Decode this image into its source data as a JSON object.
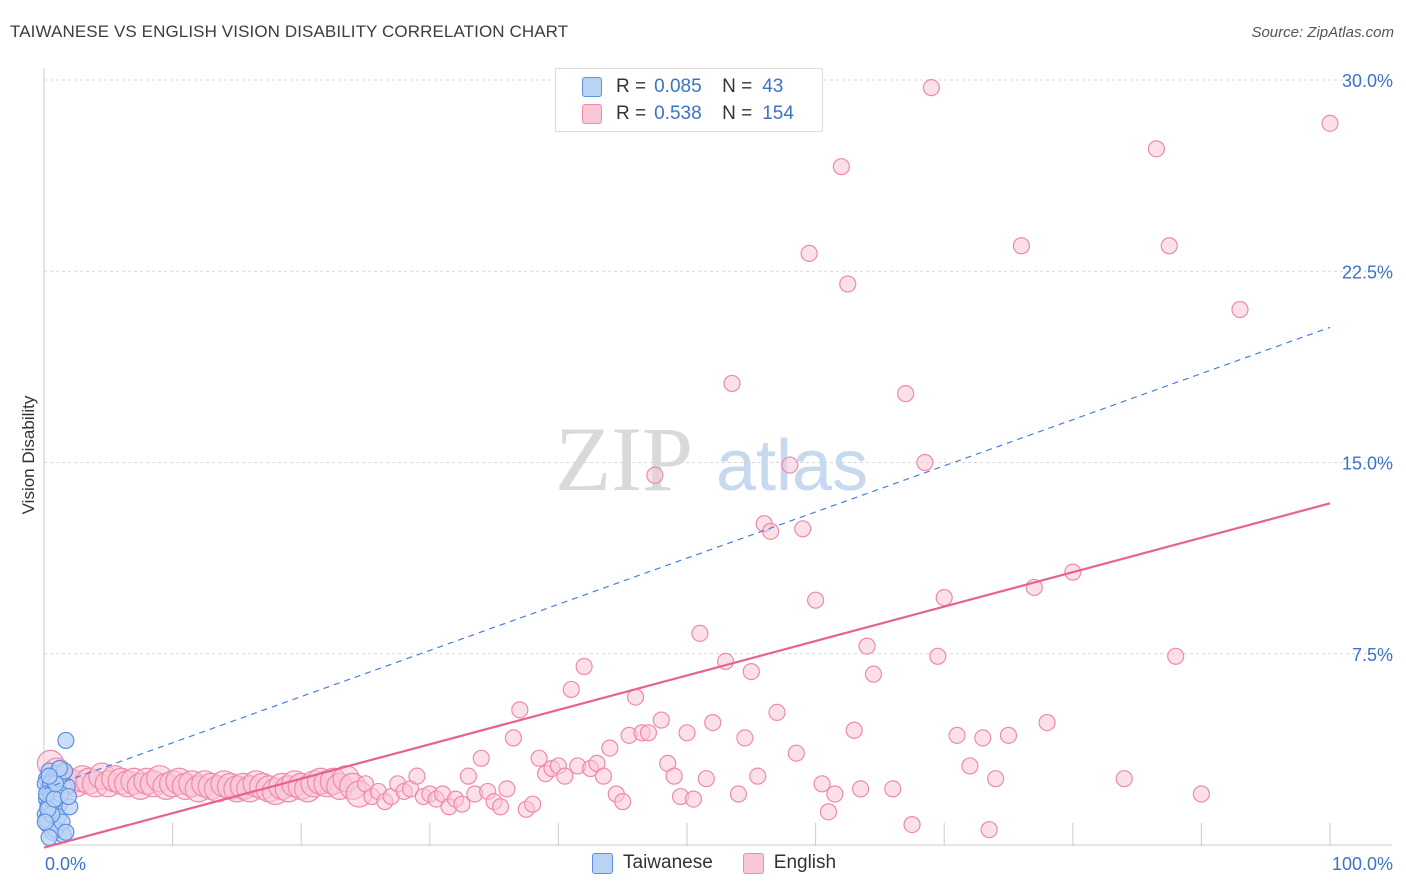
{
  "title": "TAIWANESE VS ENGLISH VISION DISABILITY CORRELATION CHART",
  "source": "Source: ZipAtlas.com",
  "watermark": {
    "zip": "ZIP",
    "atlas": "atlas"
  },
  "colors": {
    "taiwanese_fill": "#b9d3f5",
    "taiwanese_stroke": "#5b8fe0",
    "taiwanese_line": "#4a7fd8",
    "english_fill": "#f9c7d6",
    "english_stroke": "#ee8aaa",
    "english_line": "#e8628f",
    "axis_label": "#3b73c8",
    "grid": "#d7d7d7"
  },
  "legend": {
    "rows": [
      {
        "series": "Taiwanese",
        "r_label": "R =",
        "r_value": "0.085",
        "n_label": "N =",
        "n_value": "43"
      },
      {
        "series": "English",
        "r_label": "R =",
        "r_value": "0.538",
        "n_label": "N =",
        "n_value": "154"
      }
    ]
  },
  "chart_data": {
    "type": "scatter",
    "title": "TAIWANESE VS ENGLISH VISION DISABILITY CORRELATION CHART",
    "xlabel": "",
    "ylabel": "Vision Disability",
    "xlim": [
      0,
      100
    ],
    "ylim": [
      0,
      30.5
    ],
    "x_tick_labels": [
      "0.0%",
      "100.0%"
    ],
    "y_ticks": [
      7.5,
      15.0,
      22.5,
      30.0
    ],
    "y_tick_labels": [
      "7.5%",
      "15.0%",
      "22.5%",
      "30.0%"
    ],
    "grid": true,
    "legend_position": "top-center",
    "series": [
      {
        "name": "Taiwanese",
        "points": [
          [
            0.1,
            1.2
          ],
          [
            0.2,
            1.8
          ],
          [
            0.3,
            2.2
          ],
          [
            0.2,
            2.6
          ],
          [
            0.4,
            2.9
          ],
          [
            0.1,
            2.4
          ],
          [
            0.3,
            1.5
          ],
          [
            0.5,
            2.0
          ],
          [
            0.6,
            2.5
          ],
          [
            0.8,
            2.7
          ],
          [
            0.3,
            0.8
          ],
          [
            0.7,
            0.5
          ],
          [
            0.9,
            1.3
          ],
          [
            0.5,
            2.1
          ],
          [
            0.2,
            1.0
          ],
          [
            0.4,
            1.6
          ],
          [
            0.6,
            1.9
          ],
          [
            1.2,
            1.6
          ],
          [
            1.5,
            0.4
          ],
          [
            1.1,
            1.1
          ],
          [
            1.8,
            2.3
          ],
          [
            1.0,
            2.8
          ],
          [
            0.8,
            2.2
          ],
          [
            0.7,
            1.7
          ],
          [
            0.9,
            0.6
          ],
          [
            0.4,
            0.3
          ],
          [
            1.4,
            0.9
          ],
          [
            1.7,
            0.5
          ],
          [
            1.3,
            2.0
          ],
          [
            2.0,
            1.5
          ],
          [
            0.5,
            2.4
          ],
          [
            0.2,
            2.0
          ],
          [
            0.6,
            1.2
          ],
          [
            1.1,
            2.6
          ],
          [
            0.3,
            1.4
          ],
          [
            0.8,
            1.8
          ],
          [
            1.6,
            2.9
          ],
          [
            0.9,
            2.4
          ],
          [
            1.2,
            3.0
          ],
          [
            0.4,
            2.7
          ],
          [
            0.1,
            0.9
          ],
          [
            1.9,
            1.9
          ],
          [
            1.7,
            4.1
          ]
        ],
        "trend": {
          "x0": 0,
          "y0": 2.2,
          "x1": 100,
          "y1": 20.3,
          "style": "dashed"
        }
      },
      {
        "name": "English",
        "points": [
          [
            0.5,
            3.2
          ],
          [
            1.0,
            2.9
          ],
          [
            1.5,
            2.6
          ],
          [
            2.0,
            2.5
          ],
          [
            2.5,
            2.4
          ],
          [
            3.0,
            2.6
          ],
          [
            3.5,
            2.5
          ],
          [
            4.0,
            2.4
          ],
          [
            4.5,
            2.7
          ],
          [
            5.0,
            2.4
          ],
          [
            5.5,
            2.6
          ],
          [
            6.0,
            2.5
          ],
          [
            6.5,
            2.4
          ],
          [
            7.0,
            2.5
          ],
          [
            7.5,
            2.3
          ],
          [
            8.0,
            2.5
          ],
          [
            8.5,
            2.4
          ],
          [
            9.0,
            2.6
          ],
          [
            9.5,
            2.3
          ],
          [
            10.0,
            2.4
          ],
          [
            10.5,
            2.5
          ],
          [
            11.0,
            2.3
          ],
          [
            11.5,
            2.4
          ],
          [
            12.0,
            2.2
          ],
          [
            12.5,
            2.4
          ],
          [
            13.0,
            2.3
          ],
          [
            13.5,
            2.2
          ],
          [
            14.0,
            2.4
          ],
          [
            14.5,
            2.3
          ],
          [
            15.0,
            2.2
          ],
          [
            15.5,
            2.3
          ],
          [
            16.0,
            2.2
          ],
          [
            16.5,
            2.4
          ],
          [
            17.0,
            2.3
          ],
          [
            17.5,
            2.2
          ],
          [
            18.0,
            2.1
          ],
          [
            18.5,
            2.3
          ],
          [
            19.0,
            2.2
          ],
          [
            19.5,
            2.4
          ],
          [
            20.0,
            2.3
          ],
          [
            20.5,
            2.2
          ],
          [
            21.0,
            2.4
          ],
          [
            21.5,
            2.5
          ],
          [
            22.0,
            2.4
          ],
          [
            22.5,
            2.5
          ],
          [
            23.0,
            2.3
          ],
          [
            23.5,
            2.6
          ],
          [
            24.0,
            2.3
          ],
          [
            24.5,
            2.0
          ],
          [
            25.0,
            2.4
          ],
          [
            25.5,
            1.9
          ],
          [
            26.0,
            2.1
          ],
          [
            26.5,
            1.7
          ],
          [
            27.0,
            1.9
          ],
          [
            27.5,
            2.4
          ],
          [
            28.0,
            2.1
          ],
          [
            28.5,
            2.2
          ],
          [
            29.0,
            2.7
          ],
          [
            29.5,
            1.9
          ],
          [
            30.0,
            2.0
          ],
          [
            30.5,
            1.8
          ],
          [
            31.0,
            2.0
          ],
          [
            31.5,
            1.5
          ],
          [
            32.0,
            1.8
          ],
          [
            32.5,
            1.6
          ],
          [
            33.0,
            2.7
          ],
          [
            33.5,
            2.0
          ],
          [
            34.0,
            3.4
          ],
          [
            34.5,
            2.1
          ],
          [
            35.0,
            1.7
          ],
          [
            35.5,
            1.5
          ],
          [
            36.0,
            2.2
          ],
          [
            36.5,
            4.2
          ],
          [
            37.0,
            5.3
          ],
          [
            37.5,
            1.4
          ],
          [
            38.0,
            1.6
          ],
          [
            38.5,
            3.4
          ],
          [
            39.0,
            2.8
          ],
          [
            39.5,
            3.0
          ],
          [
            40.0,
            3.1
          ],
          [
            40.5,
            2.7
          ],
          [
            41.0,
            6.1
          ],
          [
            41.5,
            3.1
          ],
          [
            42.0,
            7.0
          ],
          [
            42.5,
            3.0
          ],
          [
            43.0,
            3.2
          ],
          [
            43.5,
            2.7
          ],
          [
            44.0,
            3.8
          ],
          [
            44.5,
            2.0
          ],
          [
            45.0,
            1.7
          ],
          [
            45.5,
            4.3
          ],
          [
            46.0,
            5.8
          ],
          [
            46.5,
            4.4
          ],
          [
            47.0,
            4.4
          ],
          [
            47.5,
            14.5
          ],
          [
            48.0,
            4.9
          ],
          [
            48.5,
            3.2
          ],
          [
            49.0,
            2.7
          ],
          [
            49.5,
            1.9
          ],
          [
            50.0,
            4.4
          ],
          [
            50.5,
            1.8
          ],
          [
            51.0,
            8.3
          ],
          [
            51.5,
            2.6
          ],
          [
            52.0,
            4.8
          ],
          [
            53.0,
            7.2
          ],
          [
            53.5,
            18.1
          ],
          [
            54.0,
            2.0
          ],
          [
            54.5,
            4.2
          ],
          [
            55.0,
            6.8
          ],
          [
            55.5,
            2.7
          ],
          [
            56.0,
            12.6
          ],
          [
            56.5,
            12.3
          ],
          [
            57.0,
            5.2
          ],
          [
            58.0,
            14.9
          ],
          [
            58.5,
            3.6
          ],
          [
            59.0,
            12.4
          ],
          [
            59.5,
            23.2
          ],
          [
            60.0,
            9.6
          ],
          [
            60.5,
            2.4
          ],
          [
            61.0,
            1.3
          ],
          [
            61.5,
            2.0
          ],
          [
            62.0,
            26.6
          ],
          [
            62.5,
            22.0
          ],
          [
            63.0,
            4.5
          ],
          [
            63.5,
            2.2
          ],
          [
            64.0,
            7.8
          ],
          [
            64.5,
            6.7
          ],
          [
            66.0,
            2.2
          ],
          [
            67.0,
            17.7
          ],
          [
            67.5,
            0.8
          ],
          [
            68.5,
            15.0
          ],
          [
            69.0,
            29.7
          ],
          [
            69.5,
            7.4
          ],
          [
            70.0,
            9.7
          ],
          [
            71.0,
            4.3
          ],
          [
            72.0,
            3.1
          ],
          [
            73.0,
            4.2
          ],
          [
            73.5,
            0.6
          ],
          [
            74.0,
            2.6
          ],
          [
            75.0,
            4.3
          ],
          [
            76.0,
            23.5
          ],
          [
            77.0,
            10.1
          ],
          [
            78.0,
            4.8
          ],
          [
            80.0,
            10.7
          ],
          [
            84.0,
            2.6
          ],
          [
            86.5,
            27.3
          ],
          [
            87.5,
            23.5
          ],
          [
            88.0,
            7.4
          ],
          [
            90.0,
            2.0
          ],
          [
            93.0,
            21.0
          ],
          [
            100.0,
            28.3
          ]
        ],
        "trend": {
          "x0": 0,
          "y0": -0.1,
          "x1": 100,
          "y1": 13.4,
          "style": "solid"
        }
      }
    ]
  }
}
